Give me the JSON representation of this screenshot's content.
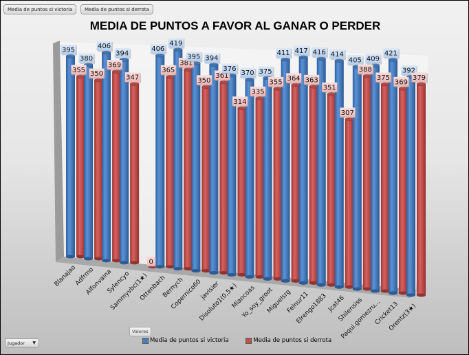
{
  "field_buttons": [
    "Media de puntos si victoria",
    "Media de puntos si derrota"
  ],
  "values_button": "Valores",
  "row_field": {
    "label": "Jugador",
    "icon": "dropdown-arrow-icon",
    "arrow": "▼"
  },
  "colors": {
    "victoria": "#4a7ebf",
    "derrota": "#c0504d",
    "victoria_label_bg": "#c5d9f1",
    "derrota_label_bg": "#f2c6c4"
  },
  "chart_data": {
    "type": "bar",
    "style": "3d-cylinder",
    "title": "MEDIA DE PUNTOS A FAVOR AL GANAR O PERDER",
    "xlabel": "",
    "ylabel": "",
    "grid": false,
    "legend_position": "bottom",
    "categories": [
      "Blanajao",
      "Adfrmo",
      "Alfonvaina",
      "Sylencyo",
      "Sammyvbc(1★)",
      "Ottenbach",
      "Bernych",
      "Copernico60",
      "javisier",
      "Disoluto1(0,5★)",
      "Miancoas",
      "Yo_soy_groot",
      "Miguelsrg",
      "Felnur11",
      "Elrengo1883",
      "Jcat46",
      "Shilensiss",
      "Paqui.gomezru...",
      "Cricket13",
      "Orentz(3★)"
    ],
    "series": [
      {
        "name": "Media de puntos si victoria",
        "values": [
          395,
          380,
          406,
          394,
          null,
          406,
          419,
          395,
          394,
          376,
          370,
          375,
          411,
          417,
          416,
          414,
          405,
          409,
          421,
          392
        ]
      },
      {
        "name": "Media de puntos si derrota",
        "values": [
          355,
          350,
          369,
          347,
          0,
          365,
          381,
          350,
          361,
          314,
          335,
          355,
          364,
          363,
          351,
          307,
          388,
          375,
          369,
          379
        ]
      }
    ],
    "ylim": [
      0,
      430
    ]
  }
}
